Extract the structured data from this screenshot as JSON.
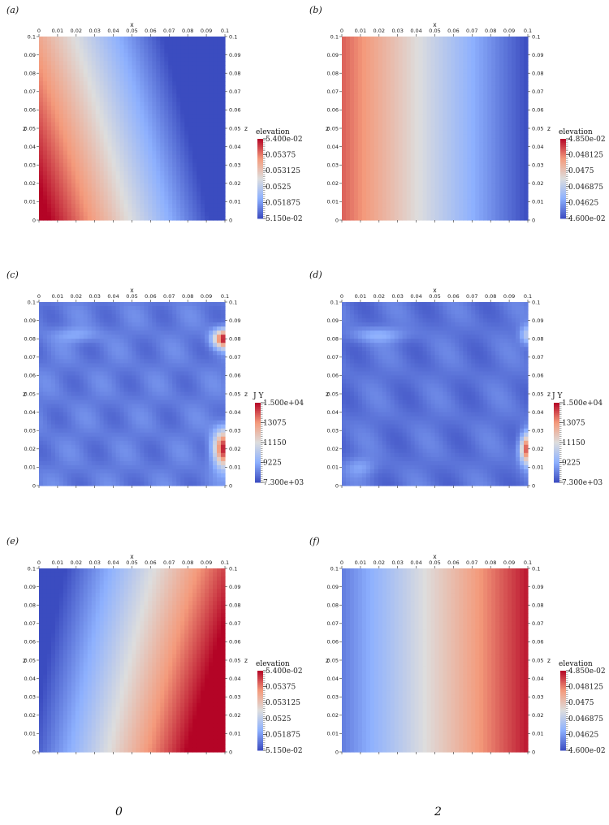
{
  "chart_data": [
    {
      "type": "heatmap",
      "panel": "(a)",
      "xlabel": "x",
      "ylabel": "z",
      "xlim": [
        0,
        0.1
      ],
      "ylim": [
        0,
        0.1
      ],
      "x_ticks": [
        "0",
        "0.01",
        "0.02",
        "0.03",
        "0.04",
        "0.05",
        "0.06",
        "0.07",
        "0.08",
        "0.09",
        "0.1"
      ],
      "y_ticks": [
        "0",
        "0.01",
        "0.02",
        "0.03",
        "0.04",
        "0.05",
        "0.06",
        "0.07",
        "0.08",
        "0.09",
        "0.1"
      ],
      "colorbar": {
        "title": "elevation",
        "min": 0.0515,
        "max": 0.054,
        "ticks": [
          "5.400e-02",
          "0.05375",
          "0.053125",
          "0.0525",
          "0.051875",
          "5.150e-02"
        ]
      },
      "field": "high (0.054) at bottom-left, decreasing to the right; low (0.0515) at top-right"
    },
    {
      "type": "heatmap",
      "panel": "(b)",
      "xlabel": "x",
      "ylabel": "z",
      "xlim": [
        0,
        0.1
      ],
      "ylim": [
        0,
        0.1
      ],
      "x_ticks": [
        "0",
        "0.01",
        "0.02",
        "0.03",
        "0.04",
        "0.05",
        "0.06",
        "0.07",
        "0.08",
        "0.09",
        "0.1"
      ],
      "y_ticks": [
        "0",
        "0.01",
        "0.02",
        "0.03",
        "0.04",
        "0.05",
        "0.06",
        "0.07",
        "0.08",
        "0.09",
        "0.1"
      ],
      "colorbar": {
        "title": "elevation",
        "min": 0.046,
        "max": 0.0485,
        "ticks": [
          "4.850e-02",
          "0.048125",
          "0.0475",
          "0.046875",
          "0.04625",
          "4.600e-02"
        ]
      },
      "field": "high on left, decreasing to the right"
    },
    {
      "type": "heatmap",
      "panel": "(c)",
      "xlabel": "x",
      "ylabel": "z",
      "xlim": [
        0,
        0.1
      ],
      "ylim": [
        0,
        0.1
      ],
      "x_ticks": [
        "0",
        "0.01",
        "0.02",
        "0.03",
        "0.04",
        "0.05",
        "0.06",
        "0.07",
        "0.08",
        "0.09",
        "0.1"
      ],
      "y_ticks": [
        "0",
        "0.01",
        "0.02",
        "0.03",
        "0.04",
        "0.05",
        "0.06",
        "0.07",
        "0.08",
        "0.09",
        "0.1"
      ],
      "colorbar": {
        "title": "J Y",
        "min": 7300,
        "max": 15000,
        "ticks": [
          "1.500e+04",
          "13075",
          "11150",
          "9225",
          "7.300e+03"
        ]
      },
      "field": "mostly low; hot spots at right edge near z=0.08 and z=0.02"
    },
    {
      "type": "heatmap",
      "panel": "(d)",
      "xlabel": "x",
      "ylabel": "z",
      "xlim": [
        0,
        0.1
      ],
      "ylim": [
        0,
        0.1
      ],
      "x_ticks": [
        "0",
        "0.01",
        "0.02",
        "0.03",
        "0.04",
        "0.05",
        "0.06",
        "0.07",
        "0.08",
        "0.09",
        "0.1"
      ],
      "y_ticks": [
        "0",
        "0.01",
        "0.02",
        "0.03",
        "0.04",
        "0.05",
        "0.06",
        "0.07",
        "0.08",
        "0.09",
        "0.1"
      ],
      "colorbar": {
        "title": "J Y",
        "min": 7300,
        "max": 15000,
        "ticks": [
          "1.500e+04",
          "13075",
          "11150",
          "9225",
          "7.300e+03"
        ]
      },
      "field": "mostly low; hot spot at right edge near z=0.02"
    },
    {
      "type": "heatmap",
      "panel": "(e)",
      "xlabel": "x",
      "ylabel": "z",
      "xlim": [
        0,
        0.1
      ],
      "ylim": [
        0,
        0.1
      ],
      "x_ticks": [
        "0",
        "0.01",
        "0.02",
        "0.03",
        "0.04",
        "0.05",
        "0.06",
        "0.07",
        "0.08",
        "0.09",
        "0.1"
      ],
      "y_ticks": [
        "0",
        "0.01",
        "0.02",
        "0.03",
        "0.04",
        "0.05",
        "0.06",
        "0.07",
        "0.08",
        "0.09",
        "0.1"
      ],
      "colorbar": {
        "title": "elevation",
        "min": 0.0515,
        "max": 0.054,
        "ticks": [
          "5.400e-02",
          "0.05375",
          "0.053125",
          "0.0525",
          "0.051875",
          "5.150e-02"
        ]
      },
      "field": "low on left, high (0.054) at bottom-right"
    },
    {
      "type": "heatmap",
      "panel": "(f)",
      "xlabel": "x",
      "ylabel": "z",
      "xlim": [
        0,
        0.1
      ],
      "ylim": [
        0,
        0.1
      ],
      "x_ticks": [
        "0",
        "0.01",
        "0.02",
        "0.03",
        "0.04",
        "0.05",
        "0.06",
        "0.07",
        "0.08",
        "0.09",
        "0.1"
      ],
      "y_ticks": [
        "0",
        "0.01",
        "0.02",
        "0.03",
        "0.04",
        "0.05",
        "0.06",
        "0.07",
        "0.08",
        "0.09",
        "0.1"
      ],
      "colorbar": {
        "title": "elevation",
        "min": 0.046,
        "max": 0.0485,
        "ticks": [
          "4.850e-02",
          "0.048125",
          "0.0475",
          "0.046875",
          "0.04625",
          "4.600e-02"
        ]
      },
      "field": "low on left, high on right"
    }
  ],
  "labels": {
    "a": "(a)",
    "b": "(b)",
    "c": "(c)",
    "d": "(d)",
    "e": "(e)",
    "f": "(f)"
  },
  "stray": {
    "left": "0",
    "right": "2"
  }
}
